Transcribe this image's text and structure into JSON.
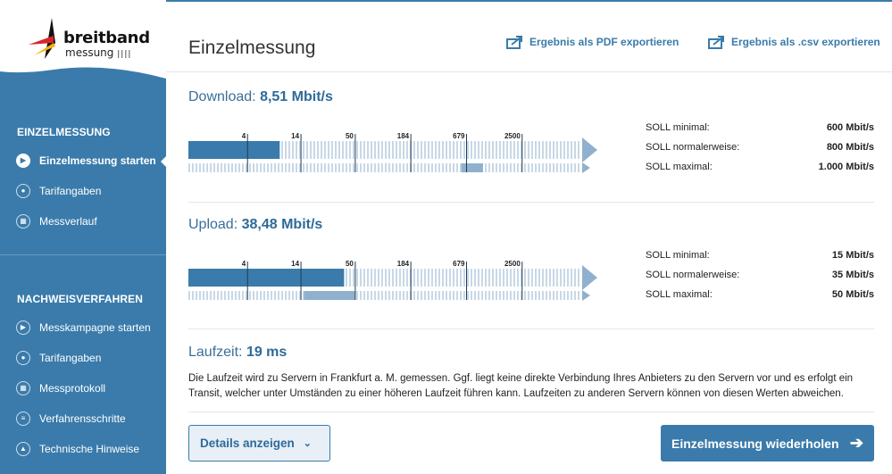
{
  "logo": {
    "line1": "breitband",
    "line2": "messung"
  },
  "sidebar": {
    "sections": [
      {
        "title": "EINZELMESSUNG",
        "items": [
          {
            "label": "Einzelmessung starten",
            "icon": "play-icon",
            "active": true
          },
          {
            "label": "Tarifangaben",
            "icon": "user-icon",
            "active": false
          },
          {
            "label": "Messverlauf",
            "icon": "calendar-icon",
            "active": false
          }
        ]
      },
      {
        "title": "NACHWEISVERFAHREN",
        "items": [
          {
            "label": "Messkampagne starten",
            "icon": "play-icon"
          },
          {
            "label": "Tarifangaben",
            "icon": "user-icon"
          },
          {
            "label": "Messprotokoll",
            "icon": "calendar-icon"
          },
          {
            "label": "Verfahrensschritte",
            "icon": "list-icon"
          },
          {
            "label": "Technische Hinweise",
            "icon": "warning-icon"
          }
        ]
      }
    ]
  },
  "header": {
    "title": "Einzelmessung",
    "export_pdf": "Ergebnis als PDF exportieren",
    "export_csv": "Ergebnis als .csv exportieren"
  },
  "download": {
    "label": "Download:",
    "value": "8,51 Mbit/s",
    "value_mbit": 8.51,
    "soll_range_mbit": [
      600,
      1000
    ],
    "ticks": [
      "4",
      "14",
      "50",
      "184",
      "679",
      "2500"
    ],
    "soll": [
      {
        "label": "SOLL minimal:",
        "value": "600 Mbit/s"
      },
      {
        "label": "SOLL normalerweise:",
        "value": "800 Mbit/s"
      },
      {
        "label": "SOLL maximal:",
        "value": "1.000 Mbit/s"
      }
    ]
  },
  "upload": {
    "label": "Upload:",
    "value": "38,48 Mbit/s",
    "value_mbit": 38.48,
    "soll_range_mbit": [
      15,
      50
    ],
    "ticks": [
      "4",
      "14",
      "50",
      "184",
      "679",
      "2500"
    ],
    "soll": [
      {
        "label": "SOLL minimal:",
        "value": "15 Mbit/s"
      },
      {
        "label": "SOLL normalerweise:",
        "value": "35 Mbit/s"
      },
      {
        "label": "SOLL maximal:",
        "value": "50 Mbit/s"
      }
    ]
  },
  "latency": {
    "label": "Laufzeit:",
    "value": "19 ms",
    "description": "Die Laufzeit wird zu Servern in Frankfurt a. M. gemessen. Ggf. liegt keine direkte Verbindung Ihres Anbieters zu den Servern vor und es erfolgt ein Transit, welcher unter Umständen zu einer höheren Laufzeit führen kann. Laufzeiten zu anderen Servern können von diesen Werten abweichen."
  },
  "buttons": {
    "details": "Details anzeigen",
    "repeat": "Einzelmessung wiederholen"
  },
  "colors": {
    "primary": "#3a7bab",
    "bar_fill": "#3a7bab",
    "bar_track": "#c8d8e6",
    "soll_fill": "#8fb1cd"
  }
}
